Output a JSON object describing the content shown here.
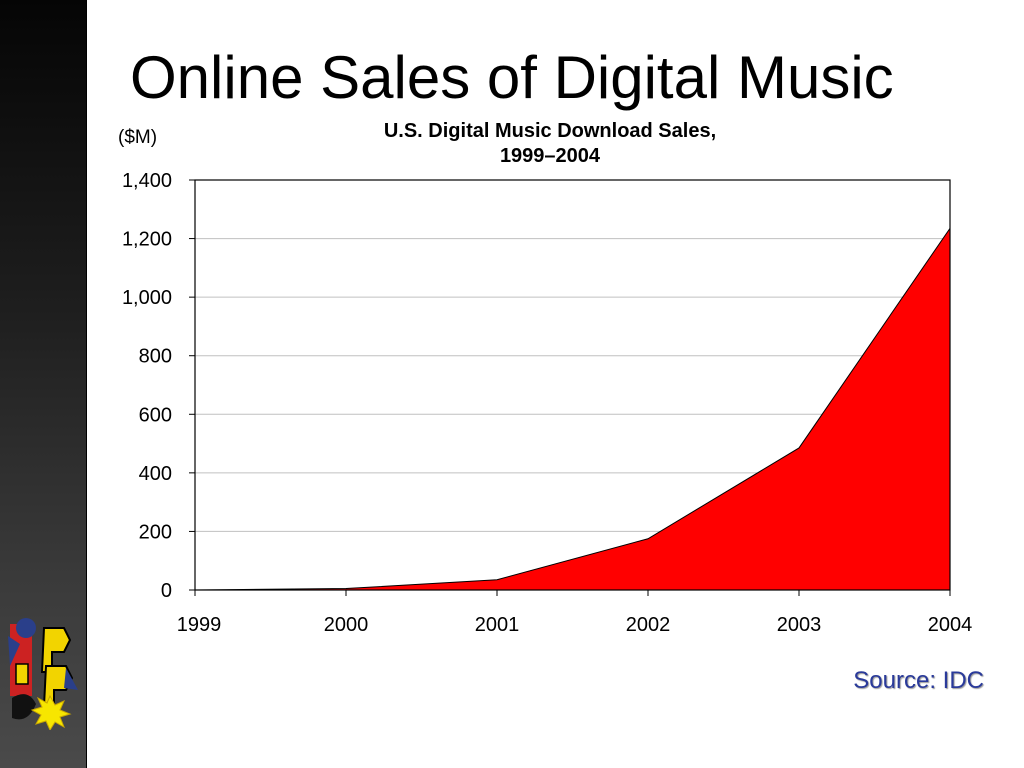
{
  "slide": {
    "title": "Online Sales of Digital Music",
    "source": "Source: IDC"
  },
  "colors": {
    "area_fill": "#ff0000",
    "source_text": "#2a3a9a",
    "gridline": "#c0c0c0"
  },
  "logo": {
    "icon": "cartoon-logo-icon"
  },
  "chart_data": {
    "type": "area",
    "title_lines": [
      "U.S. Digital Music Download Sales,",
      "1999–2004"
    ],
    "ylabel": "($M)",
    "xlabel": "",
    "x": [
      "1999",
      "2000",
      "2001",
      "2002",
      "2003",
      "2004"
    ],
    "values": [
      0,
      5,
      35,
      175,
      485,
      1235
    ],
    "ylim": [
      0,
      1400
    ],
    "yticks": [
      0,
      200,
      400,
      600,
      800,
      1000,
      1200,
      1400
    ],
    "ytick_labels": [
      "0",
      "200",
      "400",
      "600",
      "800",
      "1,000",
      "1,200",
      "1,400"
    ],
    "grid": true,
    "legend": "none"
  }
}
